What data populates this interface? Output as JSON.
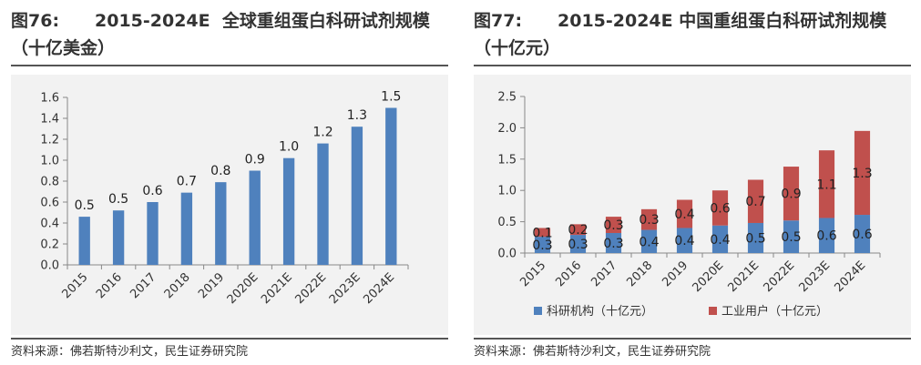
{
  "charts": [
    {
      "title_prefix": "图76:",
      "title_text": "2015-2024E  全球重组蛋白科研试剂规模（十亿美金）",
      "source": "资料来源：佛若斯特沙利文，民生证券研究院"
    },
    {
      "title_prefix": "图77:",
      "title_text": "2015-2024E 中国重组蛋白科研试剂规模（十亿元）",
      "source": "资料来源：佛若斯特沙利文，民生证券研究院"
    }
  ],
  "chart_data": [
    {
      "type": "bar",
      "title": "2015-2024E  全球重组蛋白科研试剂规模（十亿美金）",
      "categories": [
        "2015",
        "2016",
        "2017",
        "2018",
        "2019",
        "2020E",
        "2021E",
        "2022E",
        "2023E",
        "2024E"
      ],
      "values": [
        0.46,
        0.52,
        0.6,
        0.69,
        0.79,
        0.9,
        1.02,
        1.16,
        1.32,
        1.5
      ],
      "data_labels": [
        "0.5",
        "0.5",
        "0.6",
        "0.7",
        "0.8",
        "0.9",
        "1.0",
        "1.2",
        "1.3",
        "1.5"
      ],
      "ylim": [
        0,
        1.6
      ],
      "yticks": [
        "0.0",
        "0.2",
        "0.4",
        "0.6",
        "0.8",
        "1.0",
        "1.2",
        "1.4",
        "1.6"
      ],
      "xlabel": "",
      "ylabel": "",
      "colors": [
        "#4f81bd"
      ],
      "grid": false
    },
    {
      "type": "bar",
      "stacked": true,
      "title": "2015-2024E 中国重组蛋白科研试剂规模（十亿元）",
      "categories": [
        "2015",
        "2016",
        "2017",
        "2018",
        "2019",
        "2020E",
        "2021E",
        "2022E",
        "2023E",
        "2024E"
      ],
      "series": [
        {
          "name": "科研机构（十亿元）",
          "values": [
            0.26,
            0.29,
            0.32,
            0.37,
            0.4,
            0.44,
            0.48,
            0.52,
            0.56,
            0.61
          ],
          "data_labels": [
            "0.3",
            "0.3",
            "0.3",
            "0.4",
            "0.4",
            "0.4",
            "0.5",
            "0.5",
            "0.6",
            "0.6"
          ],
          "color": "#4f81bd"
        },
        {
          "name": "工业用户（十亿元）",
          "values": [
            0.14,
            0.17,
            0.26,
            0.33,
            0.45,
            0.56,
            0.69,
            0.86,
            1.08,
            1.34
          ],
          "data_labels": [
            "0.1",
            "0.2",
            "0.3",
            "0.3",
            "0.4",
            "0.6",
            "0.7",
            "0.9",
            "1.1",
            "1.3"
          ],
          "color": "#c0504d"
        }
      ],
      "ylim": [
        0,
        2.5
      ],
      "yticks": [
        "0.0",
        "0.5",
        "1.0",
        "1.5",
        "2.0",
        "2.5"
      ],
      "xlabel": "",
      "ylabel": "",
      "legend": "bottom",
      "grid": false
    }
  ]
}
